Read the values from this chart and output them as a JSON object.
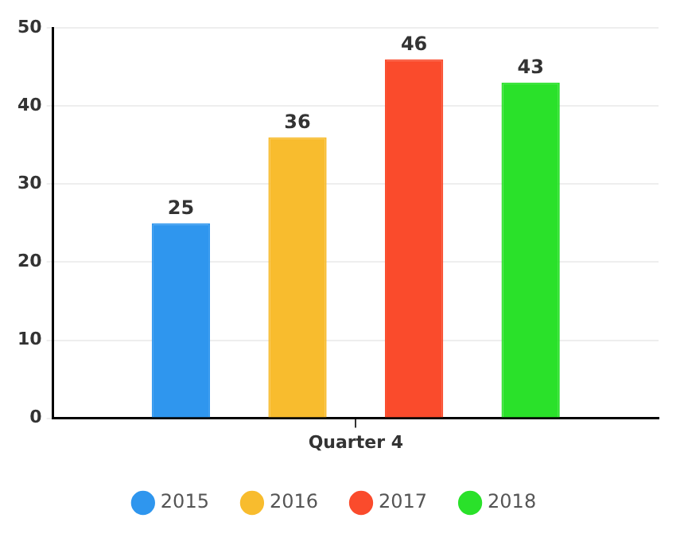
{
  "chart_data": {
    "type": "bar",
    "categories": [
      "Quarter 4"
    ],
    "series": [
      {
        "name": "2015",
        "color": "#2f96ee",
        "values": [
          25
        ]
      },
      {
        "name": "2016",
        "color": "#f8bc2e",
        "values": [
          36
        ]
      },
      {
        "name": "2017",
        "color": "#fa4b2c",
        "values": [
          46
        ]
      },
      {
        "name": "2018",
        "color": "#2ae12a",
        "values": [
          43
        ]
      }
    ],
    "ylim": [
      0,
      50
    ],
    "yticks": [
      0,
      10,
      20,
      30,
      40,
      50
    ],
    "grid": "y",
    "legend": "bottom",
    "data_labels": true
  }
}
